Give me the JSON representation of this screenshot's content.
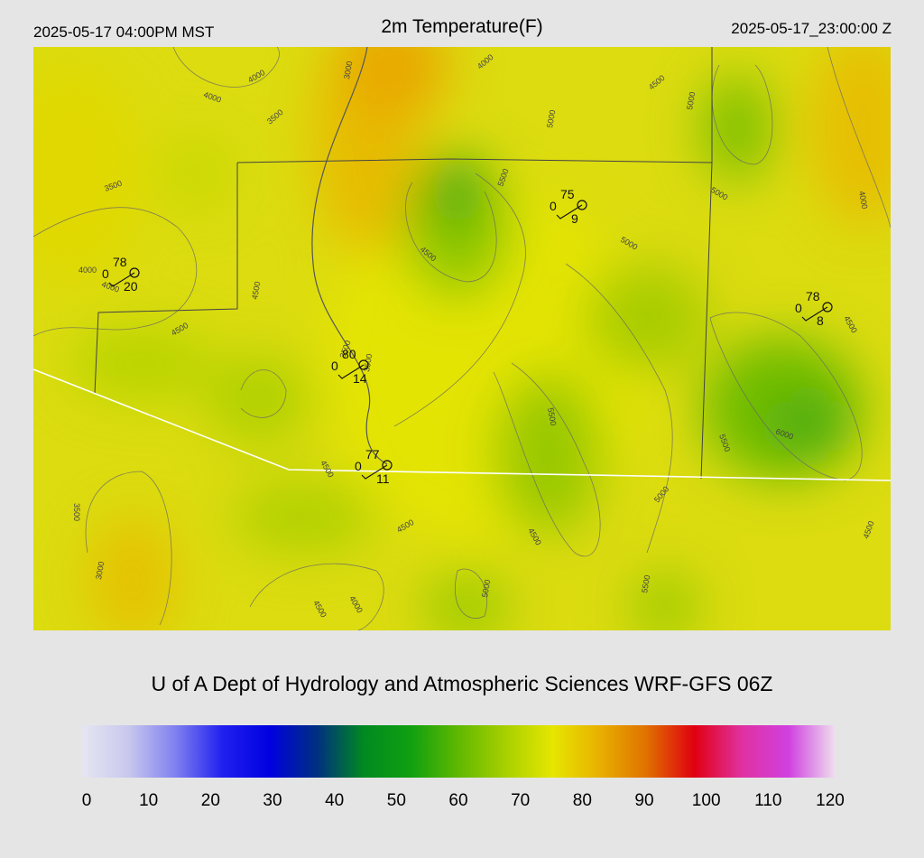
{
  "header": {
    "local_time": "2025-05-17 04:00PM MST",
    "title": "2m Temperature(F)",
    "utc_time": "2025-05-17_23:00:00 Z"
  },
  "credit": "U of A Dept of Hydrology and Atmospheric Sciences WRF-GFS 06Z",
  "colorbar": {
    "ticks": [
      "0",
      "10",
      "20",
      "30",
      "40",
      "50",
      "60",
      "70",
      "80",
      "90",
      "100",
      "110",
      "120"
    ],
    "stops": [
      "#e6e6f2",
      "#c8c8ee",
      "#8080f0",
      "#2020f0",
      "#0000e0",
      "#003080",
      "#008a20",
      "#10a010",
      "#60b800",
      "#a8d000",
      "#e6e600",
      "#e8b000",
      "#e07000",
      "#e00010",
      "#e030a0",
      "#d040e0",
      "#eee0ee"
    ]
  },
  "stations": [
    {
      "temp": "78",
      "dew": "0",
      "wind": "20"
    },
    {
      "temp": "75",
      "dew": "0",
      "wind": "9"
    },
    {
      "temp": "80",
      "dew": "0",
      "wind": "14"
    },
    {
      "temp": "77",
      "dew": "0",
      "wind": "11"
    },
    {
      "temp": "78",
      "dew": "0",
      "wind": "8"
    }
  ],
  "elevation_labels": [
    "4000",
    "3000",
    "4000",
    "3500",
    "4000",
    "4500",
    "5000",
    "3500",
    "5500",
    "4500",
    "5000",
    "4000",
    "4000",
    "4500",
    "4500",
    "3500",
    "5000",
    "5000",
    "5500",
    "4500",
    "5500",
    "6000",
    "4500",
    "3500",
    "4000",
    "4500",
    "4000",
    "5000",
    "5000",
    "4500",
    "3000",
    "4500",
    "5500",
    "4500",
    "3500"
  ]
}
